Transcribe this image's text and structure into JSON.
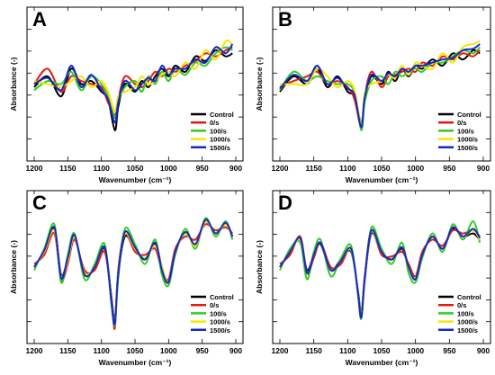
{
  "figure": {
    "panels": [
      "A",
      "B",
      "C",
      "D"
    ]
  },
  "chart_data": [
    {
      "panel": "A",
      "type": "line",
      "xlabel": "Wavenumber (cm⁻¹)",
      "ylabel": "Absorbance (-)",
      "xlim": [
        1200,
        900
      ],
      "x_reversed": true,
      "x_ticks": [
        1200,
        1150,
        1100,
        1050,
        1000,
        950,
        900
      ],
      "y_ticklabels_shown": false,
      "legend_placement": "bottom-right",
      "x": [
        1200,
        1180,
        1160,
        1145,
        1130,
        1115,
        1100,
        1090,
        1080,
        1075,
        1065,
        1050,
        1040,
        1030,
        1020,
        1010,
        1000,
        990,
        975,
        960,
        945,
        930,
        915,
        905
      ],
      "series": [
        {
          "name": "Control",
          "color": "#000000",
          "values": [
            0.48,
            0.55,
            0.42,
            0.6,
            0.5,
            0.52,
            0.45,
            0.4,
            0.2,
            0.35,
            0.5,
            0.45,
            0.52,
            0.48,
            0.55,
            0.6,
            0.55,
            0.62,
            0.58,
            0.68,
            0.65,
            0.72,
            0.68,
            0.7
          ]
        },
        {
          "name": "0/s",
          "color": "#e8190c",
          "values": [
            0.5,
            0.6,
            0.45,
            0.55,
            0.52,
            0.5,
            0.48,
            0.38,
            0.3,
            0.4,
            0.55,
            0.5,
            0.48,
            0.52,
            0.58,
            0.55,
            0.6,
            0.58,
            0.62,
            0.65,
            0.7,
            0.68,
            0.72,
            0.74
          ]
        },
        {
          "name": "100/s",
          "color": "#33cc22",
          "values": [
            0.46,
            0.52,
            0.5,
            0.58,
            0.46,
            0.55,
            0.5,
            0.42,
            0.28,
            0.38,
            0.48,
            0.52,
            0.45,
            0.55,
            0.5,
            0.58,
            0.52,
            0.6,
            0.56,
            0.64,
            0.62,
            0.7,
            0.74,
            0.72
          ]
        },
        {
          "name": "1000/s",
          "color": "#f7e600",
          "values": [
            0.52,
            0.5,
            0.48,
            0.52,
            0.55,
            0.48,
            0.52,
            0.45,
            0.32,
            0.42,
            0.45,
            0.48,
            0.55,
            0.5,
            0.52,
            0.56,
            0.58,
            0.55,
            0.64,
            0.6,
            0.72,
            0.66,
            0.78,
            0.76
          ]
        },
        {
          "name": "1500/s",
          "color": "#1428cc",
          "values": [
            0.5,
            0.54,
            0.46,
            0.62,
            0.48,
            0.56,
            0.46,
            0.4,
            0.25,
            0.38,
            0.52,
            0.46,
            0.5,
            0.54,
            0.52,
            0.62,
            0.56,
            0.6,
            0.6,
            0.66,
            0.64,
            0.74,
            0.7,
            0.76
          ]
        }
      ]
    },
    {
      "panel": "B",
      "type": "line",
      "xlabel": "Wavenumber (cm⁻¹)",
      "ylabel": "Absorbance (-)",
      "xlim": [
        1200,
        900
      ],
      "x_reversed": true,
      "x_ticks": [
        1200,
        1150,
        1100,
        1050,
        1000,
        950,
        900
      ],
      "y_ticklabels_shown": false,
      "legend_placement": "bottom-right",
      "x": [
        1200,
        1180,
        1160,
        1145,
        1130,
        1115,
        1100,
        1090,
        1080,
        1075,
        1065,
        1050,
        1040,
        1030,
        1020,
        1010,
        1000,
        990,
        975,
        960,
        945,
        930,
        915,
        905
      ],
      "series": [
        {
          "name": "Control",
          "color": "#000000",
          "values": [
            0.45,
            0.55,
            0.5,
            0.6,
            0.48,
            0.55,
            0.45,
            0.42,
            0.25,
            0.4,
            0.55,
            0.5,
            0.58,
            0.52,
            0.6,
            0.55,
            0.62,
            0.6,
            0.66,
            0.62,
            0.7,
            0.66,
            0.72,
            0.7
          ]
        },
        {
          "name": "0/s",
          "color": "#e8190c",
          "values": [
            0.48,
            0.52,
            0.55,
            0.58,
            0.5,
            0.52,
            0.48,
            0.4,
            0.22,
            0.42,
            0.58,
            0.48,
            0.55,
            0.56,
            0.58,
            0.6,
            0.58,
            0.64,
            0.62,
            0.68,
            0.66,
            0.7,
            0.68,
            0.72
          ]
        },
        {
          "name": "100/s",
          "color": "#33cc22",
          "values": [
            0.46,
            0.58,
            0.52,
            0.55,
            0.52,
            0.5,
            0.5,
            0.44,
            0.2,
            0.38,
            0.52,
            0.55,
            0.5,
            0.58,
            0.55,
            0.58,
            0.6,
            0.58,
            0.64,
            0.64,
            0.68,
            0.72,
            0.7,
            0.74
          ]
        },
        {
          "name": "1000/s",
          "color": "#f7e600",
          "values": [
            0.5,
            0.5,
            0.5,
            0.6,
            0.55,
            0.48,
            0.52,
            0.46,
            0.24,
            0.44,
            0.5,
            0.52,
            0.56,
            0.54,
            0.62,
            0.56,
            0.64,
            0.62,
            0.6,
            0.7,
            0.64,
            0.74,
            0.76,
            0.78
          ]
        },
        {
          "name": "1500/s",
          "color": "#1428cc",
          "values": [
            0.47,
            0.56,
            0.52,
            0.62,
            0.5,
            0.54,
            0.47,
            0.43,
            0.22,
            0.41,
            0.56,
            0.52,
            0.57,
            0.55,
            0.6,
            0.58,
            0.62,
            0.62,
            0.64,
            0.66,
            0.67,
            0.72,
            0.73,
            0.76
          ]
        }
      ]
    },
    {
      "panel": "C",
      "type": "line",
      "xlabel": "Wavenumber (cm⁻¹)",
      "ylabel": "Absorbance (-)",
      "xlim": [
        1200,
        900
      ],
      "x_reversed": true,
      "x_ticks": [
        1200,
        1150,
        1100,
        1050,
        1000,
        950,
        900
      ],
      "y_ticklabels_shown": false,
      "legend_placement": "bottom-right",
      "x": [
        1200,
        1185,
        1170,
        1160,
        1150,
        1140,
        1125,
        1110,
        1095,
        1085,
        1080,
        1075,
        1065,
        1050,
        1035,
        1020,
        1010,
        1000,
        990,
        975,
        960,
        945,
        930,
        915,
        905
      ],
      "series": [
        {
          "name": "Control",
          "color": "#000000",
          "values": [
            0.5,
            0.6,
            0.75,
            0.45,
            0.55,
            0.7,
            0.45,
            0.5,
            0.62,
            0.3,
            0.15,
            0.45,
            0.7,
            0.62,
            0.55,
            0.65,
            0.5,
            0.4,
            0.6,
            0.72,
            0.65,
            0.8,
            0.72,
            0.78,
            0.7
          ]
        },
        {
          "name": "0/s",
          "color": "#e8190c",
          "values": [
            0.52,
            0.58,
            0.72,
            0.42,
            0.52,
            0.68,
            0.48,
            0.48,
            0.6,
            0.28,
            0.1,
            0.48,
            0.72,
            0.6,
            0.58,
            0.62,
            0.48,
            0.42,
            0.62,
            0.7,
            0.68,
            0.78,
            0.74,
            0.76,
            0.72
          ]
        },
        {
          "name": "100/s",
          "color": "#33cc22",
          "values": [
            0.48,
            0.62,
            0.78,
            0.4,
            0.58,
            0.72,
            0.42,
            0.52,
            0.65,
            0.25,
            0.12,
            0.42,
            0.75,
            0.65,
            0.52,
            0.68,
            0.45,
            0.38,
            0.58,
            0.75,
            0.62,
            0.82,
            0.7,
            0.8,
            0.68
          ]
        },
        {
          "name": "1000/s",
          "color": "#f7e600",
          "values": [
            0.5,
            0.6,
            0.74,
            0.44,
            0.54,
            0.7,
            0.46,
            0.5,
            0.63,
            0.28,
            0.14,
            0.46,
            0.72,
            0.62,
            0.56,
            0.64,
            0.5,
            0.4,
            0.6,
            0.72,
            0.64,
            0.8,
            0.72,
            0.78,
            0.7
          ]
        },
        {
          "name": "1500/s",
          "color": "#1428cc",
          "values": [
            0.5,
            0.61,
            0.76,
            0.43,
            0.56,
            0.71,
            0.45,
            0.5,
            0.63,
            0.27,
            0.13,
            0.45,
            0.73,
            0.63,
            0.55,
            0.66,
            0.48,
            0.4,
            0.6,
            0.73,
            0.65,
            0.81,
            0.72,
            0.79,
            0.7
          ]
        }
      ]
    },
    {
      "panel": "D",
      "type": "line",
      "xlabel": "Wavenumber (cm⁻¹)",
      "ylabel": "Absorbance (-)",
      "xlim": [
        1200,
        900
      ],
      "x_reversed": true,
      "x_ticks": [
        1200,
        1150,
        1100,
        1050,
        1000,
        950,
        900
      ],
      "y_ticklabels_shown": false,
      "legend_placement": "bottom-right",
      "x": [
        1200,
        1185,
        1170,
        1160,
        1150,
        1140,
        1125,
        1110,
        1095,
        1085,
        1080,
        1075,
        1065,
        1050,
        1035,
        1020,
        1010,
        1000,
        990,
        975,
        960,
        945,
        930,
        915,
        905
      ],
      "series": [
        {
          "name": "Control",
          "color": "#000000",
          "values": [
            0.5,
            0.6,
            0.68,
            0.48,
            0.58,
            0.65,
            0.48,
            0.55,
            0.6,
            0.35,
            0.2,
            0.42,
            0.72,
            0.6,
            0.55,
            0.62,
            0.5,
            0.42,
            0.58,
            0.7,
            0.62,
            0.75,
            0.7,
            0.72,
            0.68
          ]
        },
        {
          "name": "0/s",
          "color": "#e8190c",
          "values": [
            0.52,
            0.58,
            0.7,
            0.46,
            0.56,
            0.66,
            0.5,
            0.52,
            0.62,
            0.33,
            0.18,
            0.44,
            0.74,
            0.58,
            0.57,
            0.6,
            0.52,
            0.44,
            0.6,
            0.68,
            0.64,
            0.74,
            0.72,
            0.74,
            0.7
          ]
        },
        {
          "name": "100/s",
          "color": "#33cc22",
          "values": [
            0.48,
            0.62,
            0.66,
            0.42,
            0.6,
            0.68,
            0.44,
            0.56,
            0.64,
            0.32,
            0.16,
            0.4,
            0.76,
            0.62,
            0.52,
            0.66,
            0.46,
            0.4,
            0.56,
            0.72,
            0.6,
            0.78,
            0.68,
            0.8,
            0.66
          ]
        },
        {
          "name": "1000/s",
          "color": "#f7e600",
          "values": [
            0.5,
            0.6,
            0.68,
            0.46,
            0.58,
            0.66,
            0.48,
            0.54,
            0.61,
            0.34,
            0.19,
            0.42,
            0.73,
            0.6,
            0.55,
            0.63,
            0.5,
            0.42,
            0.58,
            0.7,
            0.62,
            0.76,
            0.7,
            0.74,
            0.68
          ]
        },
        {
          "name": "1500/s",
          "color": "#1428cc",
          "values": [
            0.5,
            0.6,
            0.69,
            0.46,
            0.58,
            0.66,
            0.48,
            0.54,
            0.62,
            0.34,
            0.17,
            0.42,
            0.74,
            0.6,
            0.55,
            0.63,
            0.5,
            0.42,
            0.58,
            0.7,
            0.62,
            0.76,
            0.7,
            0.75,
            0.69
          ]
        }
      ]
    }
  ]
}
